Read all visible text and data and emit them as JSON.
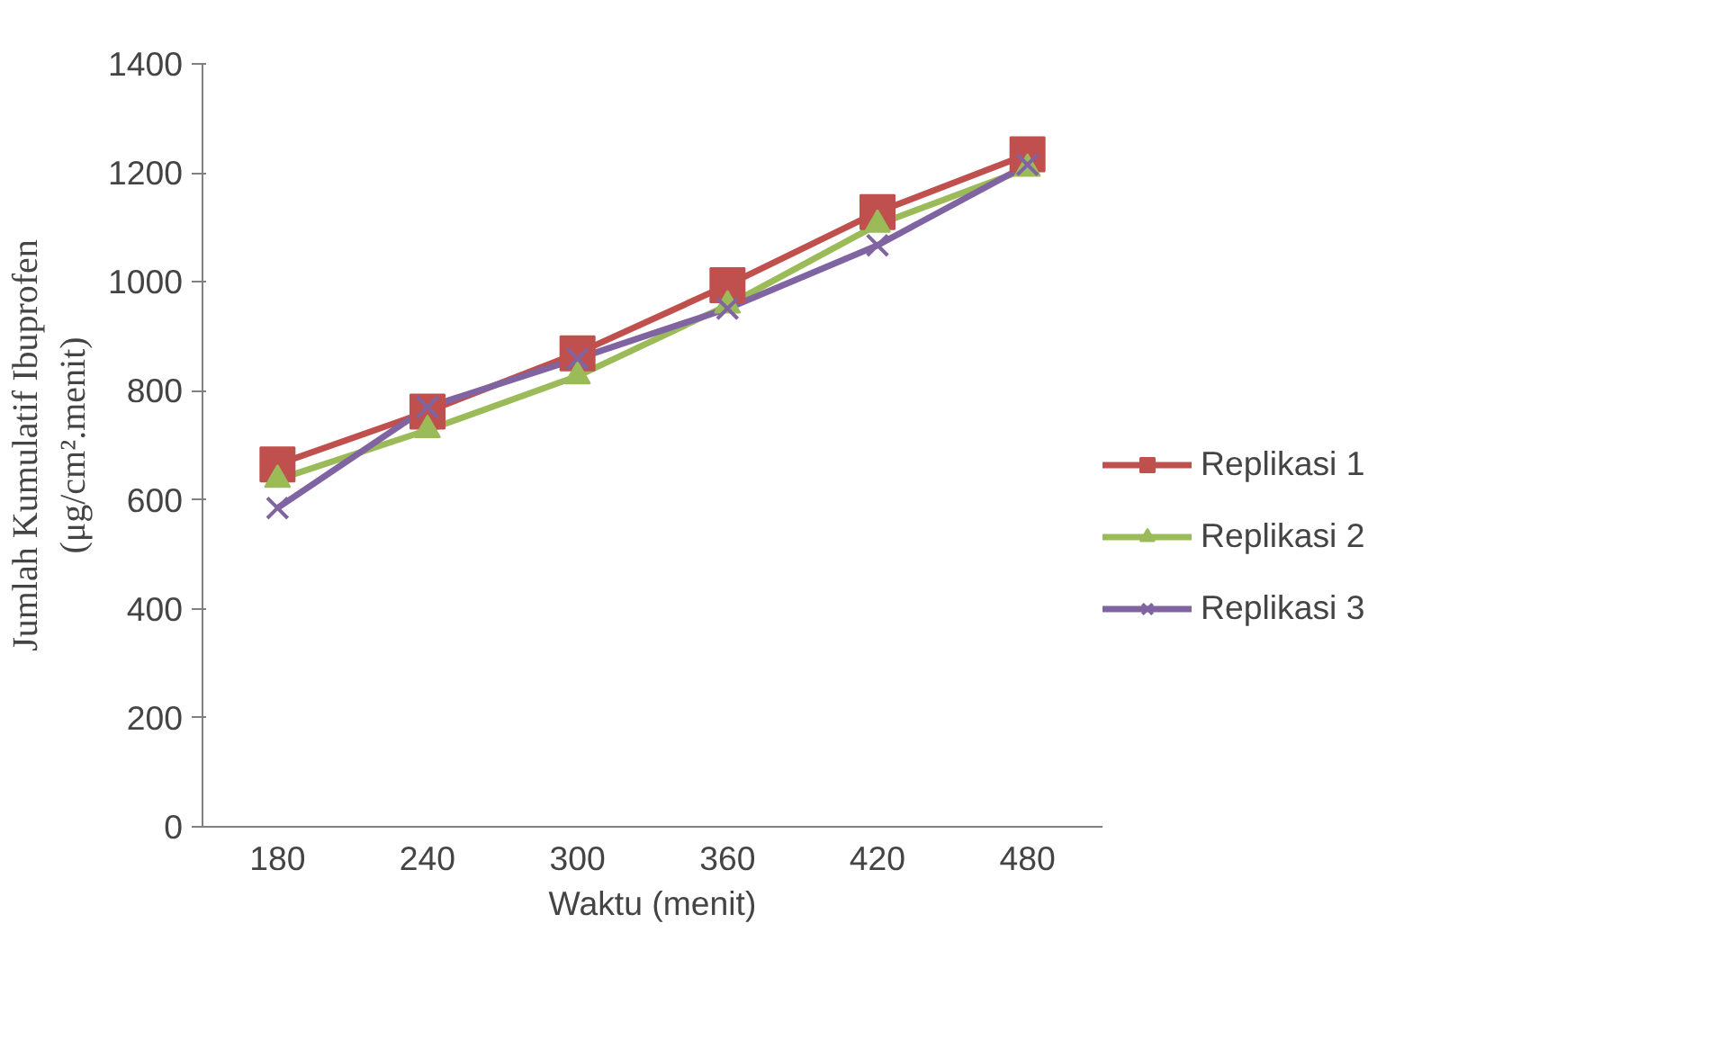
{
  "chart_data": {
    "type": "line",
    "xlabel": "Waktu (menit)",
    "ylabel": "Jumlah Kumulatif Ibuprofen\n(μg/cm².menit)",
    "categories": [
      "180",
      "240",
      "300",
      "360",
      "420",
      "480"
    ],
    "series": [
      {
        "name": "Replikasi 1",
        "color": "#c0504d",
        "marker": "square",
        "values": [
          665,
          762,
          869,
          994,
          1128,
          1234
        ]
      },
      {
        "name": "Replikasi 2",
        "color": "#9bbb59",
        "marker": "triangle",
        "values": [
          637,
          728,
          827,
          957,
          1105,
          1208
        ]
      },
      {
        "name": "Replikasi 3",
        "color": "#8064a2",
        "marker": "cross",
        "values": [
          585,
          770,
          859,
          951,
          1067,
          1215
        ]
      }
    ],
    "ylim": [
      0,
      1400
    ],
    "yticks": [
      0,
      200,
      400,
      600,
      800,
      1000,
      1200,
      1400
    ],
    "grid": false,
    "legend": "right",
    "line_style": "solid"
  }
}
